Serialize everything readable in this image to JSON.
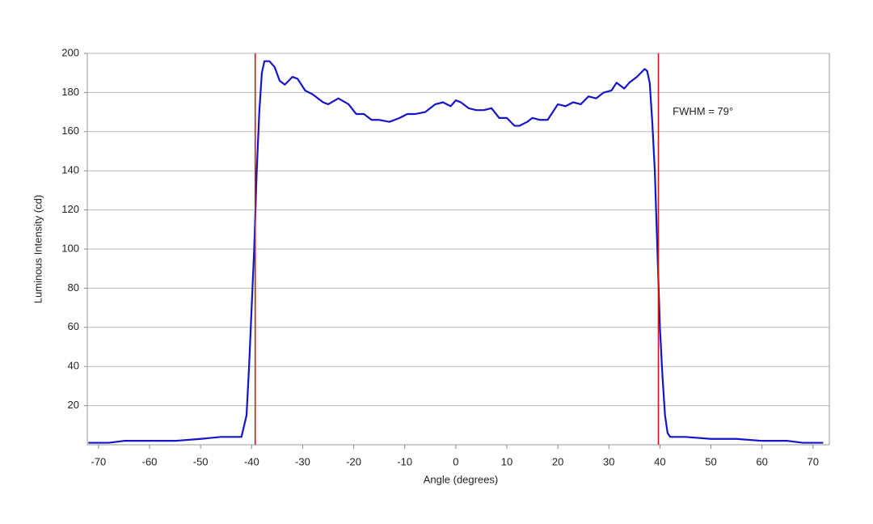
{
  "chart_data": {
    "type": "line",
    "xlabel": "Angle (degrees)",
    "ylabel": "Luminous Intensity (cd)",
    "annotation": {
      "text": "FWHM = 79°",
      "x": 42.5,
      "y": 170
    },
    "vlines": {
      "values": [
        -39.3,
        39.7
      ],
      "color": "#e01010"
    },
    "xlim": [
      -72.2,
      73.2
    ],
    "ylim": [
      0,
      200
    ],
    "xticks": [
      -70,
      -60,
      -50,
      -40,
      -30,
      -20,
      -10,
      0,
      10,
      20,
      30,
      40,
      50,
      60,
      70
    ],
    "yticks": [
      20,
      40,
      60,
      80,
      100,
      120,
      140,
      160,
      180,
      200
    ],
    "grid": true,
    "series": [
      {
        "color": "#1414c8",
        "x": [
          -72,
          -68,
          -65,
          -60,
          -55,
          -50,
          -46,
          -44,
          -42,
          -41,
          -40.5,
          -40,
          -39.5,
          -39,
          -38.5,
          -38,
          -37.5,
          -36.5,
          -35.5,
          -34.5,
          -33.5,
          -32,
          -31,
          -29.5,
          -28,
          -26,
          -25,
          -23,
          -21,
          -19.5,
          -18,
          -16.5,
          -15,
          -13,
          -11,
          -9.5,
          -8,
          -6,
          -4,
          -2.5,
          -1,
          0,
          1,
          2.5,
          4,
          5.5,
          7,
          8.5,
          10,
          11.5,
          12.5,
          14,
          15,
          16.5,
          18,
          20,
          21.5,
          23,
          24.5,
          26,
          27.5,
          29,
          30.5,
          31.5,
          33,
          34,
          35.5,
          37,
          37.5,
          38,
          38.5,
          39,
          39.5,
          40,
          40.5,
          41,
          41.5,
          42,
          45,
          50,
          55,
          60,
          65,
          68,
          72
        ],
        "values": [
          1,
          1,
          2,
          2,
          2,
          3,
          4,
          4,
          4,
          15,
          40,
          70,
          100,
          140,
          170,
          190,
          196,
          196,
          193,
          186,
          184,
          188,
          187,
          181,
          179,
          175,
          174,
          177,
          174,
          169,
          169,
          166,
          166,
          165,
          167,
          169,
          169,
          170,
          174,
          175,
          173,
          176,
          175,
          172,
          171,
          171,
          172,
          167,
          167,
          163,
          163,
          165,
          167,
          166,
          166,
          174,
          173,
          175,
          174,
          178,
          177,
          180,
          181,
          185,
          182,
          185,
          188,
          192,
          191,
          185,
          165,
          140,
          100,
          60,
          35,
          15,
          6,
          4,
          4,
          3,
          3,
          2,
          2,
          1,
          1
        ]
      }
    ]
  }
}
